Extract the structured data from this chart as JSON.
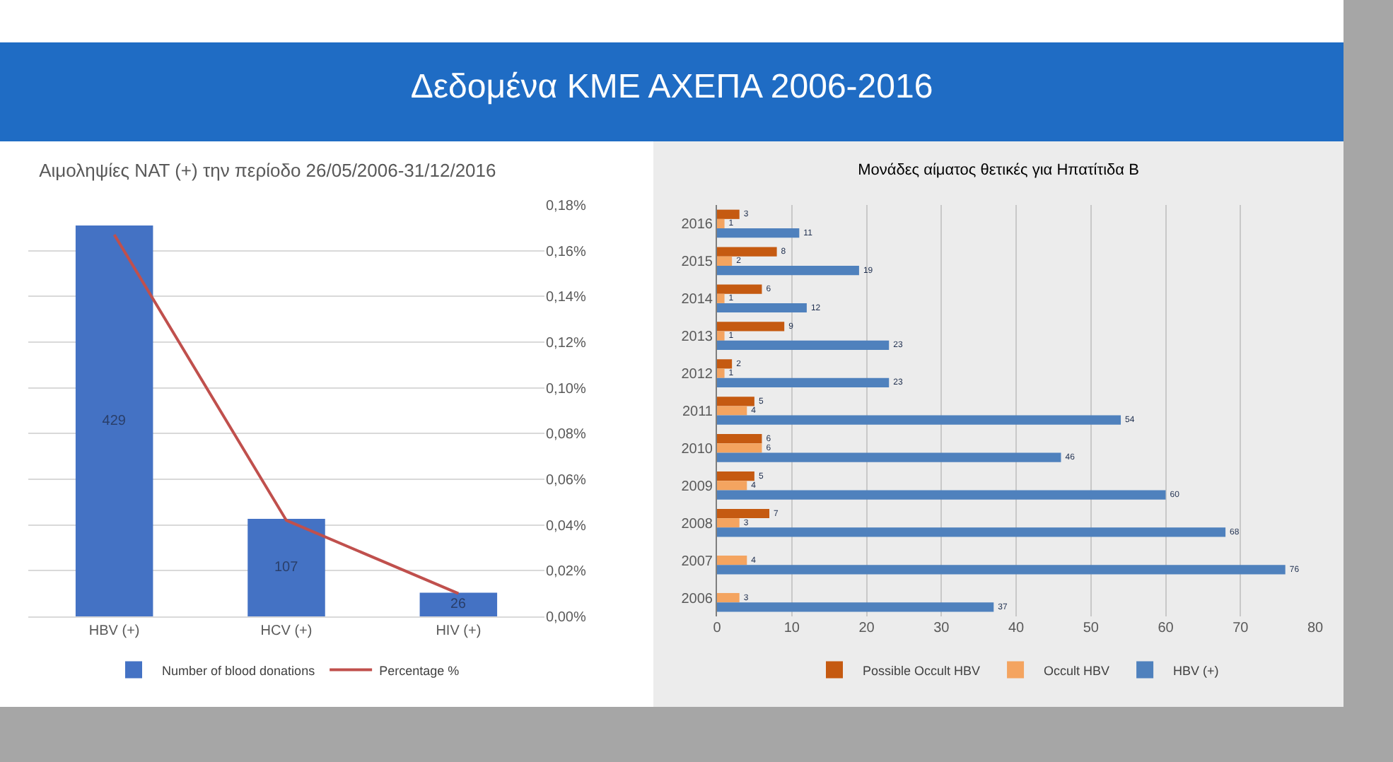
{
  "chart_data": [
    {
      "type": "other",
      "title": "Δεδομένα ΚΜΕ ΑΧΕΠΑ 2006-2016"
    },
    {
      "type": "bar",
      "title": "Αιμοληψίες NAT (+) την περίοδο 26/05/2006-31/12/2016",
      "categories": [
        "HBV (+)",
        "HCV (+)",
        "HIV (+)"
      ],
      "series": [
        {
          "name": "Number of blood donations",
          "color": "#4472c4",
          "values": [
            429,
            107,
            26
          ],
          "value_labels": [
            "429",
            "107",
            "26"
          ]
        },
        {
          "name": "Percentage %",
          "type": "line",
          "axis": "y2",
          "color": "#c0504d",
          "values": [
            0.167,
            0.042,
            0.01
          ]
        }
      ],
      "y2lim": [
        0,
        0.18
      ],
      "y2ticks": [
        {
          "value": 0,
          "label": "0,00%"
        },
        {
          "value": 0.02,
          "label": "0,02%"
        },
        {
          "value": 0.04,
          "label": "0,04%"
        },
        {
          "value": 0.06,
          "label": "0,06%"
        },
        {
          "value": 0.08,
          "label": "0,08%"
        },
        {
          "value": 0.1,
          "label": "0,10%"
        },
        {
          "value": 0.12,
          "label": "0,12%"
        },
        {
          "value": 0.14,
          "label": "0,14%"
        },
        {
          "value": 0.16,
          "label": "0,16%"
        },
        {
          "value": 0.18,
          "label": "0,18%"
        }
      ],
      "grid": true,
      "legend": "bottom",
      "marker": "none"
    },
    {
      "type": "bar",
      "orientation": "horizontal",
      "title": "Μονάδες αίματος θετικές για Ηπατίτιδα Β",
      "categories": [
        "2016",
        "2015",
        "2014",
        "2013",
        "2012",
        "2011",
        "2010",
        "2009",
        "2008",
        "2007",
        "2006"
      ],
      "series": [
        {
          "name": "Possible Occult HBV",
          "color": "#c55a11",
          "values": [
            3,
            8,
            6,
            9,
            2,
            5,
            6,
            5,
            7,
            null,
            null
          ]
        },
        {
          "name": "Occult HBV",
          "color": "#f4a460",
          "values": [
            1,
            2,
            1,
            1,
            1,
            4,
            6,
            4,
            3,
            4,
            3
          ]
        },
        {
          "name": "HBV (+)",
          "color": "#4f81bd",
          "values": [
            11,
            19,
            12,
            23,
            23,
            54,
            46,
            60,
            68,
            76,
            37
          ]
        }
      ],
      "xlim": [
        0,
        80
      ],
      "xticks": [
        0,
        10,
        20,
        30,
        40,
        50,
        60,
        70,
        80
      ],
      "data_labels": true,
      "grid": "x",
      "legend": "bottom"
    }
  ]
}
